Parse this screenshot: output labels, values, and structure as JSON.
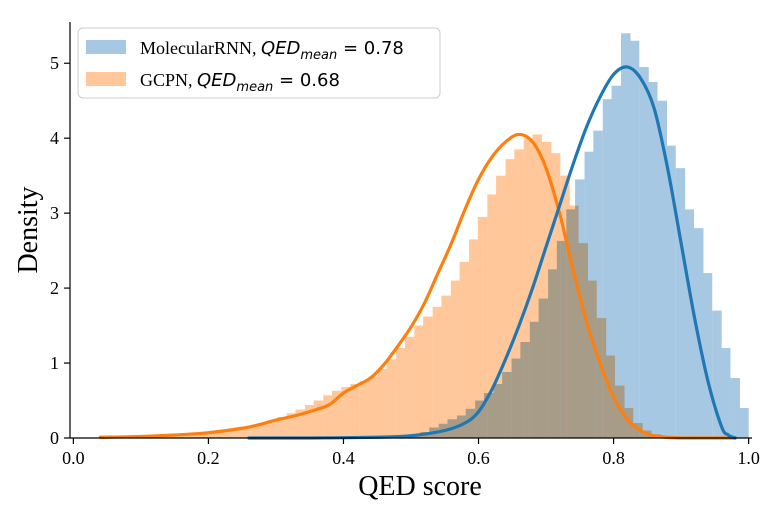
{
  "chart_data": {
    "type": "bar",
    "xlabel": "QED score",
    "ylabel": "Density",
    "xlim": [
      -0.005,
      1.005
    ],
    "ylim": [
      0,
      5.55
    ],
    "xticks": [
      "0.0",
      "0.2",
      "0.4",
      "0.6",
      "0.8",
      "1.0"
    ],
    "yticks": [
      "0",
      "1",
      "2",
      "3",
      "4",
      "5"
    ],
    "grid": false,
    "legend_position": "top-left",
    "series": [
      {
        "legend": {
          "prefix": "MolecularRNN, ",
          "math_base": "QED",
          "math_sub": "mean",
          "math_value": " = 0.78"
        },
        "hist_color": "#a6c8e2",
        "line_color": "#1f77b4",
        "bin_width": 0.0135,
        "hist": [
          [
            0.5,
            0.04
          ],
          [
            0.514,
            0.08
          ],
          [
            0.527,
            0.14
          ],
          [
            0.541,
            0.19
          ],
          [
            0.554,
            0.25
          ],
          [
            0.568,
            0.3
          ],
          [
            0.581,
            0.39
          ],
          [
            0.595,
            0.5
          ],
          [
            0.608,
            0.6
          ],
          [
            0.622,
            0.72
          ],
          [
            0.635,
            0.88
          ],
          [
            0.649,
            1.06
          ],
          [
            0.662,
            1.28
          ],
          [
            0.676,
            1.55
          ],
          [
            0.689,
            1.86
          ],
          [
            0.703,
            2.25
          ],
          [
            0.716,
            2.63
          ],
          [
            0.73,
            3.05
          ],
          [
            0.743,
            3.45
          ],
          [
            0.757,
            3.82
          ],
          [
            0.77,
            4.1
          ],
          [
            0.784,
            4.52
          ],
          [
            0.797,
            4.7
          ],
          [
            0.811,
            5.4
          ],
          [
            0.824,
            5.3
          ],
          [
            0.838,
            4.95
          ],
          [
            0.851,
            4.75
          ],
          [
            0.865,
            4.5
          ],
          [
            0.878,
            3.9
          ],
          [
            0.892,
            3.6
          ],
          [
            0.905,
            3.05
          ],
          [
            0.919,
            2.8
          ],
          [
            0.932,
            2.2
          ],
          [
            0.946,
            1.7
          ],
          [
            0.959,
            1.2
          ],
          [
            0.973,
            0.8
          ],
          [
            0.986,
            0.4
          ]
        ],
        "kde": [
          [
            0.26,
            0.0
          ],
          [
            0.35,
            0.0
          ],
          [
            0.45,
            0.01
          ],
          [
            0.5,
            0.03
          ],
          [
            0.55,
            0.1
          ],
          [
            0.58,
            0.2
          ],
          [
            0.6,
            0.35
          ],
          [
            0.62,
            0.65
          ],
          [
            0.64,
            1.05
          ],
          [
            0.66,
            1.5
          ],
          [
            0.68,
            2.0
          ],
          [
            0.7,
            2.55
          ],
          [
            0.72,
            3.1
          ],
          [
            0.74,
            3.65
          ],
          [
            0.76,
            4.15
          ],
          [
            0.78,
            4.55
          ],
          [
            0.8,
            4.85
          ],
          [
            0.82,
            4.95
          ],
          [
            0.84,
            4.8
          ],
          [
            0.86,
            4.4
          ],
          [
            0.88,
            3.6
          ],
          [
            0.9,
            2.6
          ],
          [
            0.92,
            1.6
          ],
          [
            0.94,
            0.75
          ],
          [
            0.96,
            0.15
          ],
          [
            0.97,
            0.04
          ],
          [
            0.98,
            0.0
          ]
        ]
      },
      {
        "legend": {
          "prefix": "GCPN, ",
          "math_base": "QED",
          "math_sub": "mean",
          "math_value": " = 0.68"
        },
        "hist_color": "#ffc79a",
        "line_color": "#ff7f0e",
        "bin_width": 0.0135,
        "hist": [
          [
            0.1,
            0.02
          ],
          [
            0.113,
            0.03
          ],
          [
            0.127,
            0.03
          ],
          [
            0.14,
            0.04
          ],
          [
            0.154,
            0.04
          ],
          [
            0.167,
            0.05
          ],
          [
            0.181,
            0.06
          ],
          [
            0.194,
            0.07
          ],
          [
            0.208,
            0.08
          ],
          [
            0.221,
            0.1
          ],
          [
            0.235,
            0.12
          ],
          [
            0.248,
            0.14
          ],
          [
            0.262,
            0.17
          ],
          [
            0.275,
            0.2
          ],
          [
            0.289,
            0.24
          ],
          [
            0.302,
            0.28
          ],
          [
            0.316,
            0.33
          ],
          [
            0.329,
            0.38
          ],
          [
            0.343,
            0.44
          ],
          [
            0.356,
            0.5
          ],
          [
            0.37,
            0.57
          ],
          [
            0.383,
            0.63
          ],
          [
            0.397,
            0.68
          ],
          [
            0.41,
            0.72
          ],
          [
            0.424,
            0.76
          ],
          [
            0.437,
            0.82
          ],
          [
            0.451,
            0.92
          ],
          [
            0.464,
            1.05
          ],
          [
            0.478,
            1.2
          ],
          [
            0.491,
            1.35
          ],
          [
            0.505,
            1.5
          ],
          [
            0.518,
            1.62
          ],
          [
            0.532,
            1.75
          ],
          [
            0.545,
            1.9
          ],
          [
            0.559,
            2.1
          ],
          [
            0.572,
            2.35
          ],
          [
            0.586,
            2.65
          ],
          [
            0.599,
            2.95
          ],
          [
            0.613,
            3.25
          ],
          [
            0.626,
            3.5
          ],
          [
            0.64,
            3.72
          ],
          [
            0.653,
            3.85
          ],
          [
            0.667,
            4.0
          ],
          [
            0.68,
            4.05
          ],
          [
            0.694,
            3.95
          ],
          [
            0.707,
            3.8
          ],
          [
            0.721,
            3.5
          ],
          [
            0.734,
            3.1
          ],
          [
            0.748,
            2.6
          ],
          [
            0.761,
            2.1
          ],
          [
            0.775,
            1.6
          ],
          [
            0.788,
            1.1
          ],
          [
            0.802,
            0.7
          ],
          [
            0.815,
            0.4
          ],
          [
            0.829,
            0.2
          ],
          [
            0.842,
            0.1
          ],
          [
            0.856,
            0.05
          ]
        ],
        "kde": [
          [
            0.04,
            0.01
          ],
          [
            0.1,
            0.02
          ],
          [
            0.15,
            0.04
          ],
          [
            0.2,
            0.07
          ],
          [
            0.25,
            0.13
          ],
          [
            0.28,
            0.19
          ],
          [
            0.3,
            0.24
          ],
          [
            0.33,
            0.3
          ],
          [
            0.36,
            0.38
          ],
          [
            0.38,
            0.45
          ],
          [
            0.4,
            0.6
          ],
          [
            0.42,
            0.7
          ],
          [
            0.44,
            0.8
          ],
          [
            0.46,
            0.98
          ],
          [
            0.48,
            1.22
          ],
          [
            0.5,
            1.48
          ],
          [
            0.52,
            1.8
          ],
          [
            0.54,
            2.2
          ],
          [
            0.56,
            2.6
          ],
          [
            0.58,
            3.05
          ],
          [
            0.6,
            3.45
          ],
          [
            0.62,
            3.75
          ],
          [
            0.64,
            3.95
          ],
          [
            0.66,
            4.05
          ],
          [
            0.68,
            3.95
          ],
          [
            0.7,
            3.6
          ],
          [
            0.72,
            3.0
          ],
          [
            0.74,
            2.25
          ],
          [
            0.76,
            1.55
          ],
          [
            0.78,
            1.0
          ],
          [
            0.8,
            0.55
          ],
          [
            0.82,
            0.25
          ],
          [
            0.84,
            0.1
          ],
          [
            0.86,
            0.03
          ],
          [
            0.9,
            0.0
          ],
          [
            0.98,
            0.0
          ]
        ]
      }
    ]
  }
}
